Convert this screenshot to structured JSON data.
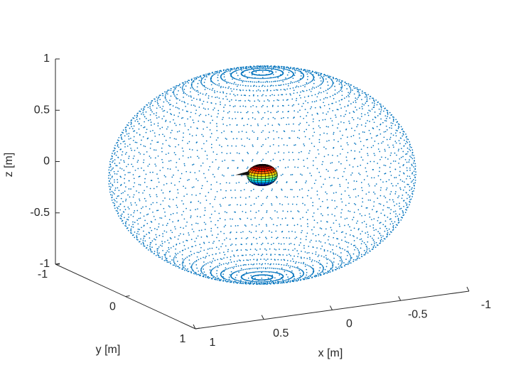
{
  "chart_data": {
    "type": "scatter3d",
    "xlabel": "x [m]",
    "ylabel": "y [m]",
    "zlabel": "z [m]",
    "xlim": [
      -1,
      1
    ],
    "ylim": [
      -1,
      1
    ],
    "zlim": [
      -1,
      1
    ],
    "xticks": [
      1,
      0.5,
      0,
      -0.5,
      -1
    ],
    "yticks": [
      -1,
      0,
      1
    ],
    "zticks": [
      -1,
      -0.5,
      0,
      0.5,
      1
    ],
    "series": [
      {
        "shape": "sphere",
        "radius": 1,
        "color": "#0072bd"
      },
      {
        "shape": "sphere",
        "radius": 0.1,
        "colormap": "jet"
      }
    ]
  }
}
